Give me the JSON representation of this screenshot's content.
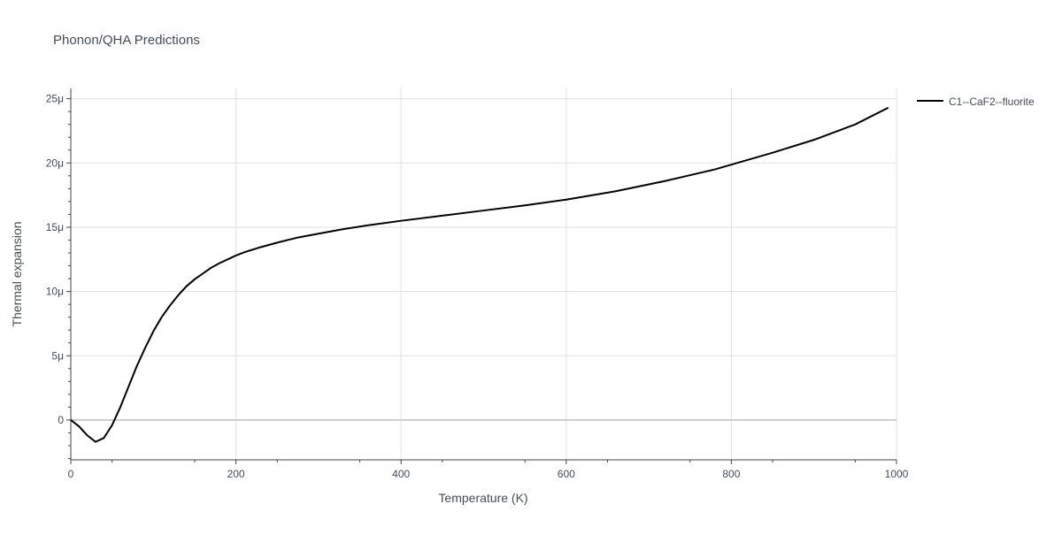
{
  "chart_data": {
    "type": "line",
    "title": "Phonon/QHA Predictions",
    "xlabel": "Temperature (K)",
    "ylabel": "Thermal expansion",
    "xlim": [
      0,
      1000
    ],
    "ylim": [
      -3.1,
      25.8
    ],
    "x_ticks": [
      0,
      200,
      400,
      600,
      800,
      1000
    ],
    "x_tick_labels": [
      "0",
      "200",
      "400",
      "600",
      "800",
      "1000"
    ],
    "y_ticks": [
      0,
      5,
      10,
      15,
      20,
      25
    ],
    "y_tick_labels": [
      "0",
      "5μ",
      "10μ",
      "15μ",
      "20μ",
      "25μ"
    ],
    "y_unit_scale": "1e-6",
    "grid": true,
    "legend_position": "top-right",
    "series": [
      {
        "name": "C1--CaF2--fluorite",
        "color": "#000000",
        "x": [
          0,
          10,
          20,
          30,
          40,
          50,
          60,
          70,
          80,
          90,
          100,
          110,
          120,
          130,
          140,
          150,
          160,
          170,
          180,
          190,
          200,
          210,
          220,
          230,
          250,
          275,
          300,
          330,
          360,
          400,
          450,
          500,
          550,
          600,
          660,
          720,
          780,
          850,
          900,
          950,
          990
        ],
        "y": [
          0,
          -0.5,
          -1.2,
          -1.7,
          -1.4,
          -0.4,
          1.0,
          2.6,
          4.2,
          5.6,
          6.9,
          8.0,
          8.9,
          9.7,
          10.4,
          10.95,
          11.4,
          11.85,
          12.2,
          12.5,
          12.8,
          13.05,
          13.25,
          13.45,
          13.8,
          14.2,
          14.5,
          14.85,
          15.15,
          15.5,
          15.9,
          16.3,
          16.7,
          17.15,
          17.8,
          18.6,
          19.5,
          20.8,
          21.8,
          23.0,
          24.3
        ]
      }
    ]
  }
}
